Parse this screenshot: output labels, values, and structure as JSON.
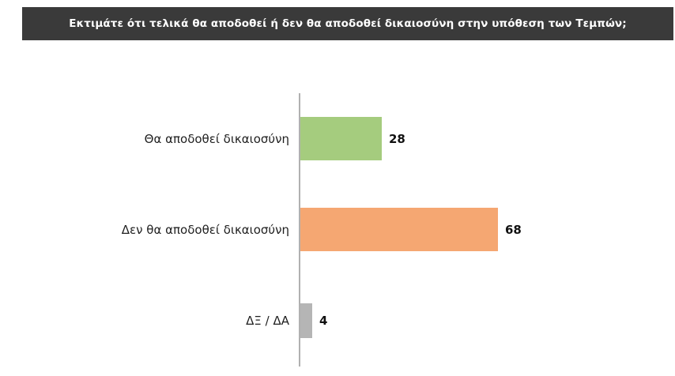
{
  "header": {
    "title": "Εκτιμάτε ότι τελικά θα αποδοθεί ή δεν θα αποδοθεί δικαιοσύνη στην υπόθεση των Τεμπών;",
    "bg_color": "#3a3a3a",
    "text_color": "#ffffff"
  },
  "chart_data": {
    "type": "bar",
    "orientation": "horizontal",
    "title": "Εκτιμάτε ότι τελικά θα αποδοθεί ή δεν θα αποδοθεί δικαιοσύνη στην υπόθεση των Τεμπών;",
    "categories": [
      "Θα αποδοθεί δικαιοσύνη",
      "Δεν θα αποδοθεί δικαιοσύνη",
      "ΔΞ / ΔΑ"
    ],
    "values": [
      28,
      68,
      4
    ],
    "colors": [
      "#a5cc7e",
      "#f5a772",
      "#b5b5b5"
    ],
    "xlim": [
      0,
      80
    ],
    "xlabel": "",
    "ylabel": "",
    "grid": false,
    "legend": false,
    "value_labels_shown": true
  }
}
